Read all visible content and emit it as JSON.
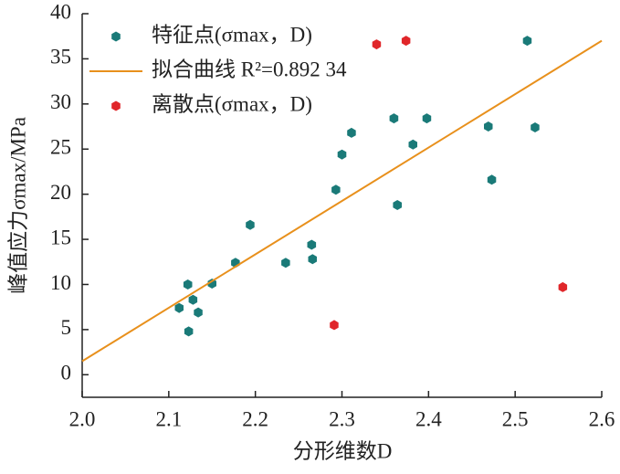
{
  "chart_data": {
    "type": "scatter",
    "xlabel": "分形维数D",
    "ylabel": "峰值应力σmax/MPa",
    "xlim": [
      2.0,
      2.6
    ],
    "ylim": [
      -2.5,
      40
    ],
    "xticks": [
      {
        "value": 2.0,
        "label": "2.0"
      },
      2.1,
      2.2,
      2.3,
      2.4,
      2.5,
      2.6
    ],
    "yticks": [
      0,
      5,
      10,
      15,
      20,
      25,
      30,
      35,
      40
    ],
    "legend": "upper left",
    "series": [
      {
        "name": "特征点(σmax，D)",
        "type": "scatter",
        "color": "#1a7a78",
        "x": [
          2.112,
          2.122,
          2.123,
          2.128,
          2.134,
          2.15,
          2.177,
          2.194,
          2.235,
          2.265,
          2.266,
          2.293,
          2.3,
          2.311,
          2.36,
          2.364,
          2.382,
          2.398,
          2.469,
          2.473,
          2.514,
          2.523
        ],
        "values": [
          7.4,
          10.0,
          4.8,
          8.3,
          6.9,
          10.1,
          12.4,
          16.6,
          12.4,
          14.4,
          12.8,
          20.5,
          24.4,
          26.8,
          28.4,
          18.8,
          25.5,
          28.4,
          27.5,
          21.6,
          37.0,
          27.4
        ]
      },
      {
        "name": "拟合曲线  R²=0.892 34",
        "type": "line",
        "color": "#e8901c",
        "x": [
          2.0,
          2.6
        ],
        "values": [
          1.5,
          37.0
        ]
      },
      {
        "name": "离散点(σmax，D)",
        "type": "scatter",
        "color": "#e0262a",
        "x": [
          2.291,
          2.34,
          2.374,
          2.555
        ],
        "values": [
          5.5,
          36.6,
          37.0,
          9.7
        ]
      }
    ]
  }
}
